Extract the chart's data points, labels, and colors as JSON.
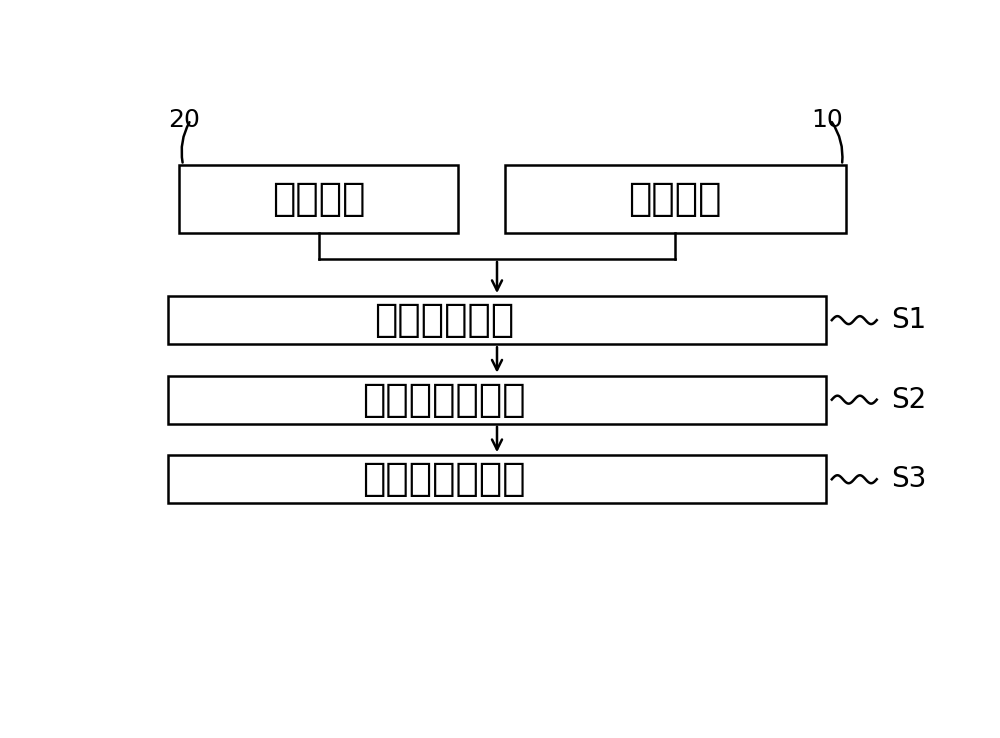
{
  "background_color": "#ffffff",
  "figure_width": 10.0,
  "figure_height": 7.38,
  "dpi": 100,
  "label_20": "20",
  "label_10": "10",
  "box_left_text": "接触元件",
  "box_right_text": "触控面板",
  "step1_text": "相对斜向配置",
  "step2_text": "相互接近的平移",
  "step3_text": "相互触压至分离",
  "s1_label": "S1",
  "s2_label": "S2",
  "s3_label": "S3",
  "box_line_color": "#000000",
  "box_fill_color": "#ffffff",
  "text_color": "#000000",
  "arrow_color": "#000000",
  "font_size_top_boxes": 28,
  "font_size_steps": 28,
  "font_size_labels": 18,
  "font_size_snums": 20
}
